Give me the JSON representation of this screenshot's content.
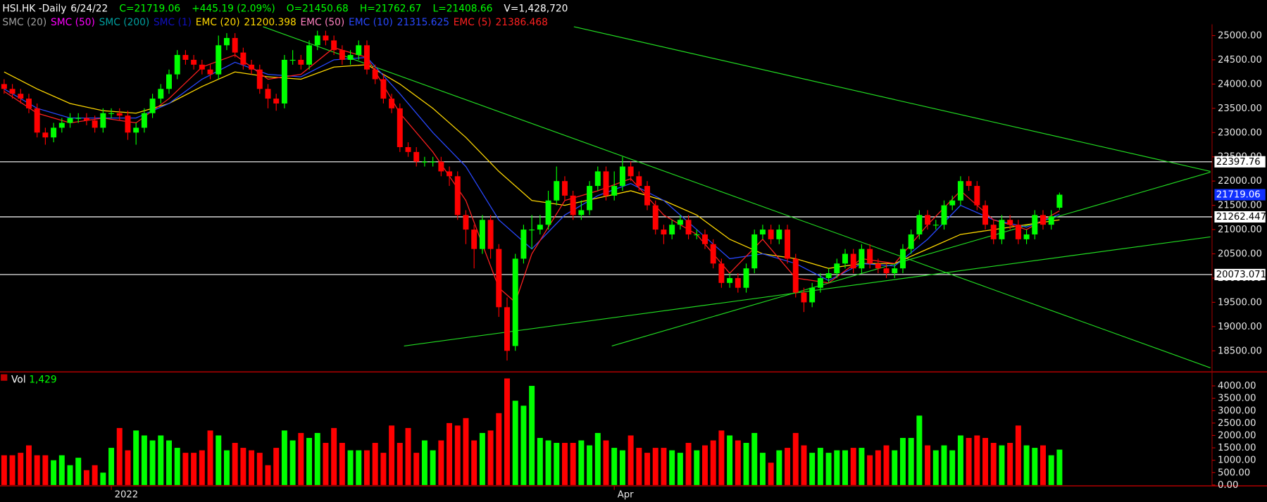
{
  "chart_data": {
    "type": "candlestick",
    "header": [
      "HSI.HK -Daily",
      "6/24/22",
      "C=21719.06",
      "+445.19 (2.09%)",
      "O=21450.68",
      "H=21762.67",
      "L=21408.66",
      "V=1,428,720"
    ],
    "xlim": [
      -0.5,
      146.5
    ],
    "xticks": [
      {
        "value": 13,
        "label": "2022"
      },
      {
        "value": 74,
        "label": "Apr"
      }
    ],
    "ylim": [
      18100,
      25200
    ],
    "yticks": [
      {
        "value": 18500,
        "label": "18500.00"
      },
      {
        "value": 19000,
        "label": "19000.00"
      },
      {
        "value": 19500,
        "label": "19500.00"
      },
      {
        "value": 20000,
        "label": "20000.00"
      },
      {
        "value": 20500,
        "label": "20500.00"
      },
      {
        "value": 21000,
        "label": "21000.00"
      },
      {
        "value": 21500,
        "label": "21500.00"
      },
      {
        "value": 22000,
        "label": "22000.00"
      },
      {
        "value": 22500,
        "label": "22500.00"
      },
      {
        "value": 23000,
        "label": "23000.00"
      },
      {
        "value": 23500,
        "label": "23500.00"
      },
      {
        "value": 24000,
        "label": "24000.00"
      },
      {
        "value": 24500,
        "label": "24500.00"
      },
      {
        "value": 25000,
        "label": "25000.00"
      }
    ],
    "up_color": "#00ff00",
    "down_color": "#ff0000",
    "open": [
      24000,
      23900,
      23800,
      23700,
      23500,
      23000,
      22900,
      23100,
      23200,
      23300,
      23300,
      23250,
      23100,
      23400,
      23400,
      23350,
      23000,
      23100,
      23400,
      23700,
      23900,
      24200,
      24600,
      24500,
      24400,
      24300,
      24200,
      24800,
      24950,
      24650,
      24400,
      24300,
      23900,
      23700,
      23600,
      24500,
      24500,
      24400,
      24800,
      25000,
      24900,
      24700,
      24500,
      24600,
      24800,
      24300,
      24100,
      23700,
      23500,
      22700,
      22600,
      22400,
      22400,
      22400,
      22200,
      22100,
      21300,
      21000,
      20600,
      21200,
      20600,
      19400,
      18600,
      20400,
      21000,
      21000,
      21100,
      21600,
      22000,
      21700,
      21300,
      21400,
      21900,
      22200,
      21700,
      21900,
      22300,
      22100,
      21900,
      21500,
      21000,
      20900,
      21100,
      21200,
      20900,
      20900,
      20700,
      20300,
      19900,
      20000,
      19800,
      20200,
      20900,
      21000,
      20800,
      21000,
      20400,
      19700,
      19500,
      19800,
      20000,
      20100,
      20300,
      20500,
      20200,
      20600,
      20300,
      20200,
      20100,
      20200,
      20600,
      20900,
      21300,
      21100,
      21100,
      21500,
      21600,
      22000,
      21900,
      21500,
      21100,
      20800,
      21200,
      21100,
      20800,
      20900,
      21300,
      21100,
      21450.68
    ],
    "high": [
      24100,
      24000,
      23900,
      23800,
      23600,
      23100,
      23200,
      23300,
      23400,
      23400,
      23400,
      23350,
      23500,
      23500,
      23500,
      23450,
      23200,
      23500,
      23800,
      24000,
      24300,
      24700,
      24700,
      24600,
      24500,
      24400,
      25000,
      25050,
      25050,
      24750,
      24500,
      24400,
      24000,
      23800,
      24600,
      24700,
      24600,
      24900,
      25100,
      25100,
      25000,
      24800,
      24700,
      24900,
      24900,
      24400,
      24200,
      23800,
      23600,
      22800,
      22700,
      22500,
      22500,
      22500,
      22300,
      22200,
      21400,
      21100,
      21300,
      21300,
      20700,
      19600,
      20500,
      21100,
      21300,
      21300,
      21800,
      22300,
      22100,
      21800,
      21600,
      22000,
      22300,
      22300,
      22200,
      22500,
      22400,
      22200,
      22000,
      21600,
      21100,
      21200,
      21300,
      21300,
      21000,
      21000,
      20800,
      20400,
      20100,
      20100,
      20300,
      21000,
      21100,
      21100,
      21100,
      21100,
      20500,
      19800,
      19900,
      20100,
      20200,
      20400,
      20600,
      20600,
      20700,
      20700,
      20400,
      20300,
      20300,
      20700,
      21000,
      21400,
      21400,
      21200,
      21600,
      21700,
      22100,
      22100,
      22000,
      21600,
      21200,
      21300,
      21300,
      21200,
      21000,
      21400,
      21400,
      21400,
      21762.67
    ],
    "low": [
      23800,
      23700,
      23600,
      23400,
      22900,
      22750,
      22800,
      23000,
      23100,
      23200,
      23150,
      23000,
      23000,
      23300,
      23250,
      22850,
      22750,
      23000,
      23300,
      23600,
      23800,
      24100,
      24400,
      24300,
      24200,
      24100,
      24100,
      24700,
      24550,
      24300,
      24200,
      23800,
      23500,
      23450,
      23500,
      24400,
      24300,
      24300,
      24700,
      24800,
      24600,
      24400,
      24400,
      24500,
      24200,
      24000,
      23600,
      23400,
      22600,
      22500,
      22300,
      22300,
      22300,
      22100,
      21900,
      21200,
      20700,
      20200,
      20500,
      20400,
      19200,
      18300,
      18500,
      20300,
      20600,
      20900,
      21000,
      21500,
      21600,
      21200,
      21200,
      21300,
      21800,
      21600,
      21600,
      21800,
      22000,
      21800,
      21400,
      20900,
      20700,
      20800,
      21000,
      20800,
      20800,
      20600,
      20200,
      19800,
      19800,
      19700,
      19700,
      20100,
      20800,
      20700,
      20700,
      20300,
      19600,
      19300,
      19400,
      19700,
      19900,
      20000,
      20200,
      20100,
      20100,
      20200,
      20100,
      20000,
      20000,
      20100,
      20500,
      20800,
      21000,
      21000,
      21000,
      21400,
      21500,
      21800,
      21400,
      21000,
      20700,
      20700,
      21000,
      20700,
      20700,
      20800,
      21000,
      21000,
      21408.66
    ],
    "close": [
      23900,
      23800,
      23700,
      23500,
      23000,
      22900,
      23100,
      23200,
      23300,
      23300,
      23250,
      23100,
      23400,
      23400,
      23350,
      23000,
      23100,
      23400,
      23700,
      23900,
      24200,
      24600,
      24500,
      24400,
      24300,
      24200,
      24800,
      24950,
      24650,
      24400,
      24300,
      23900,
      23700,
      23600,
      24500,
      24500,
      24400,
      24800,
      25000,
      24900,
      24700,
      24500,
      24600,
      24800,
      24300,
      24100,
      23700,
      23500,
      22700,
      22600,
      22400,
      22400,
      22400,
      22200,
      22100,
      21300,
      21000,
      20600,
      21200,
      20600,
      19400,
      18500,
      20400,
      21000,
      21000,
      21100,
      21600,
      22000,
      21700,
      21300,
      21400,
      21900,
      22200,
      21700,
      21900,
      22300,
      22100,
      21900,
      21500,
      21000,
      20900,
      21100,
      21200,
      20900,
      20900,
      20700,
      20300,
      19900,
      20000,
      19800,
      20200,
      20900,
      21000,
      20800,
      21000,
      20400,
      19700,
      19500,
      19800,
      20000,
      20100,
      20300,
      20500,
      20200,
      20600,
      20300,
      20200,
      20100,
      20200,
      20600,
      20900,
      21300,
      21100,
      21100,
      21500,
      21600,
      22000,
      21900,
      21500,
      21100,
      20800,
      21200,
      21100,
      20800,
      20900,
      21300,
      21100,
      21273.87,
      21719.06
    ],
    "levels": [
      22397.76,
      21262.447,
      20073.071
    ],
    "series": [
      {
        "name": "SMC (20)",
        "color": "#a0a0a0"
      },
      {
        "name": "SMC (50)",
        "color": "#ff00ff"
      },
      {
        "name": "SMC (200)",
        "color": "#00a0a0"
      },
      {
        "name": "SMC (1)",
        "color": "#1010c0"
      },
      {
        "name": "EMC (20)",
        "color": "#ffd800",
        "x": [
          0,
          4,
          8,
          12,
          16,
          20,
          24,
          28,
          32,
          36,
          40,
          44,
          48,
          52,
          56,
          60,
          64,
          68,
          72,
          76,
          80,
          84,
          88,
          92,
          96,
          100,
          104,
          108,
          112,
          116,
          120,
          124,
          128
        ],
        "values": [
          24250,
          23900,
          23600,
          23450,
          23400,
          23600,
          23950,
          24250,
          24150,
          24100,
          24350,
          24400,
          24000,
          23500,
          22900,
          22200,
          21600,
          21500,
          21650,
          21800,
          21600,
          21300,
          20800,
          20500,
          20400,
          20200,
          20300,
          20300,
          20600,
          20900,
          21000,
          21100,
          21200.398
        ]
      },
      {
        "name": "EMC (50)",
        "color": "#ff80c0"
      },
      {
        "name": "EMC (10)",
        "color": "#2848ff",
        "x": [
          0,
          4,
          8,
          12,
          16,
          20,
          24,
          28,
          32,
          36,
          40,
          44,
          48,
          52,
          56,
          60,
          64,
          68,
          72,
          76,
          80,
          84,
          88,
          92,
          96,
          100,
          104,
          108,
          112,
          116,
          120,
          124,
          128
        ],
        "values": [
          23900,
          23500,
          23300,
          23300,
          23300,
          23600,
          24100,
          24450,
          24200,
          24150,
          24500,
          24550,
          23800,
          23000,
          22300,
          21200,
          20600,
          21300,
          21700,
          21950,
          21600,
          21000,
          20400,
          20500,
          20300,
          19950,
          20300,
          20250,
          20800,
          21500,
          21200,
          21050,
          21315.625
        ]
      },
      {
        "name": "EMC (5)",
        "color": "#ff2020",
        "x": [
          0,
          4,
          8,
          12,
          16,
          20,
          24,
          28,
          32,
          36,
          40,
          44,
          48,
          52,
          56,
          60,
          62,
          64,
          68,
          72,
          76,
          80,
          84,
          88,
          92,
          96,
          100,
          104,
          108,
          112,
          116,
          120,
          124,
          128
        ],
        "values": [
          23850,
          23400,
          23200,
          23300,
          23200,
          23700,
          24350,
          24600,
          24100,
          24200,
          24750,
          24550,
          23400,
          22600,
          21600,
          19800,
          19500,
          20500,
          21600,
          21800,
          22050,
          21300,
          20900,
          20100,
          20800,
          20000,
          19900,
          20400,
          20300,
          21100,
          21800,
          21200,
          21000,
          21386.468
        ]
      }
    ],
    "trendlines": [
      {
        "x": [
          31.4,
          146.3
        ],
        "y": [
          25183,
          18150
        ]
      },
      {
        "x": [
          69.1,
          146.3
        ],
        "y": [
          25183,
          22200
        ]
      },
      {
        "x": [
          48.5,
          146.3
        ],
        "y": [
          18600,
          20850
        ]
      },
      {
        "x": [
          73.7,
          146.3
        ],
        "y": [
          18600,
          22183
        ]
      }
    ],
    "trendline_color": "#22dd22",
    "volume": {
      "name": "Vol",
      "last_value_label": "1,429",
      "values": [
        1200,
        1200,
        1300,
        1600,
        1200,
        1200,
        1000,
        1200,
        800,
        1100,
        600,
        800,
        500,
        1500,
        2300,
        1400,
        2200,
        2000,
        1800,
        2000,
        1800,
        1500,
        1300,
        1300,
        1400,
        2200,
        2000,
        1400,
        1700,
        1500,
        1400,
        1300,
        800,
        1500,
        2200,
        1800,
        2100,
        1900,
        2100,
        1700,
        2300,
        1700,
        1400,
        1400,
        1400,
        1700,
        1300,
        2400,
        1700,
        2300,
        1300,
        1800,
        1400,
        1800,
        2500,
        2400,
        2700,
        1800,
        2100,
        2200,
        2900,
        4300,
        3400,
        3200,
        4000,
        1900,
        1800,
        1700,
        1700,
        1700,
        1800,
        1600,
        2100,
        1800,
        1500,
        1400,
        2000,
        1500,
        1300,
        1500,
        1500,
        1400,
        1300,
        1700,
        1400,
        1600,
        1800,
        2200,
        2000,
        1800,
        1700,
        2100,
        1300,
        900,
        1400,
        1500,
        2100,
        1600,
        1300,
        1500,
        1300,
        1400,
        1400,
        1500,
        1500,
        1200,
        1400,
        1600,
        1400,
        1900,
        1900,
        2800,
        1600,
        1400,
        1600,
        1400,
        2000,
        1900,
        2000,
        1900,
        1700,
        1600,
        1700,
        2400,
        1600,
        1500,
        1600,
        1200,
        1429
      ],
      "ylim": [
        0,
        4500
      ],
      "yticks": [
        {
          "value": 0,
          "label": "0.00"
        },
        {
          "value": 500,
          "label": "500.00"
        },
        {
          "value": 1000,
          "label": "1000.00"
        },
        {
          "value": 1500,
          "label": "1500.00"
        },
        {
          "value": 2000,
          "label": "2000.00"
        },
        {
          "value": 2500,
          "label": "2500.00"
        },
        {
          "value": 3000,
          "label": "3000.00"
        },
        {
          "value": 3500,
          "label": "3500.00"
        },
        {
          "value": 4000,
          "label": "4000.00"
        }
      ]
    }
  }
}
